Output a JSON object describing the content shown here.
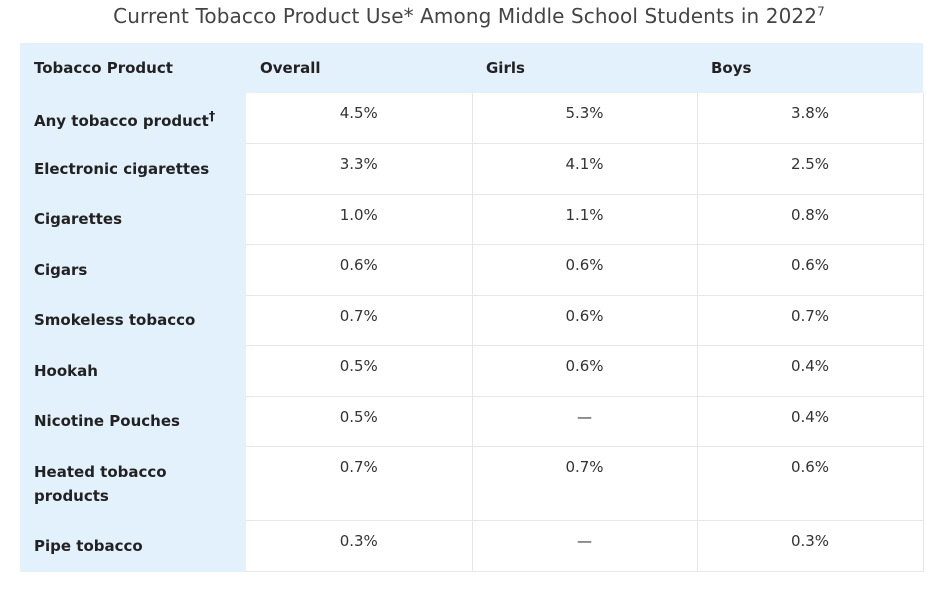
{
  "chart_data": {
    "type": "table",
    "title": "Current Tobacco Product Use* Among Middle School Students in 2022",
    "title_superscript": "7",
    "columns": [
      "Tobacco Product",
      "Overall",
      "Girls",
      "Boys"
    ],
    "rows": [
      {
        "product": "Any tobacco product",
        "marker": "†",
        "overall": "4.5%",
        "girls": "5.3%",
        "boys": "3.8%"
      },
      {
        "product": "Electronic cigarettes",
        "marker": "",
        "overall": "3.3%",
        "girls": "4.1%",
        "boys": "2.5%"
      },
      {
        "product": "Cigarettes",
        "marker": "",
        "overall": "1.0%",
        "girls": "1.1%",
        "boys": "0.8%"
      },
      {
        "product": "Cigars",
        "marker": "",
        "overall": "0.6%",
        "girls": "0.6%",
        "boys": "0.6%"
      },
      {
        "product": "Smokeless tobacco",
        "marker": "",
        "overall": "0.7%",
        "girls": "0.6%",
        "boys": "0.7%"
      },
      {
        "product": "Hookah",
        "marker": "",
        "overall": "0.5%",
        "girls": "0.6%",
        "boys": "0.4%"
      },
      {
        "product": "Nicotine Pouches",
        "marker": "",
        "overall": "0.5%",
        "girls": "—",
        "boys": "0.4%"
      },
      {
        "product": "Heated tobacco products",
        "marker": "",
        "overall": "0.7%",
        "girls": "0.7%",
        "boys": "0.6%"
      },
      {
        "product": "Pipe tobacco",
        "marker": "",
        "overall": "0.3%",
        "girls": "—",
        "boys": "0.3%"
      }
    ]
  },
  "colors": {
    "header_bg": "#e3f1fd",
    "border": "#e6e6e6",
    "title": "#444444"
  }
}
